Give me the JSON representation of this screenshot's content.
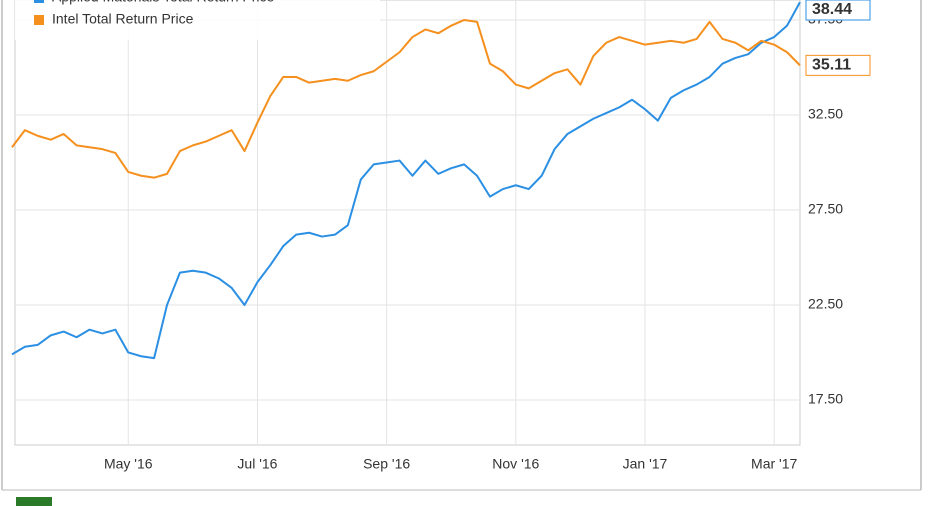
{
  "chart_data": {
    "type": "line",
    "categories": [
      null,
      null,
      null,
      null,
      null,
      null,
      null,
      null,
      null,
      "May '16",
      null,
      null,
      null,
      null,
      null,
      null,
      null,
      null,
      null,
      "Jul '16",
      null,
      null,
      null,
      null,
      null,
      null,
      null,
      null,
      null,
      "Sep '16",
      null,
      null,
      null,
      null,
      null,
      null,
      null,
      null,
      null,
      "Nov '16",
      null,
      null,
      null,
      null,
      null,
      null,
      null,
      null,
      null,
      "Jan '17",
      null,
      null,
      null,
      null,
      null,
      null,
      null,
      null,
      null,
      "Mar '17",
      null,
      null
    ],
    "series": [
      {
        "name": "Applied Materials Total Return Price",
        "color": "#2b8fe3",
        "values": [
          19.9,
          20.3,
          20.4,
          20.9,
          21.1,
          20.8,
          21.2,
          21.0,
          21.2,
          20.0,
          19.8,
          19.7,
          22.5,
          24.2,
          24.3,
          24.2,
          23.9,
          23.4,
          22.5,
          23.7,
          24.6,
          25.6,
          26.2,
          26.3,
          26.1,
          26.2,
          26.7,
          29.1,
          29.9,
          30.0,
          30.1,
          29.3,
          30.1,
          29.4,
          29.7,
          29.9,
          29.3,
          28.2,
          28.6,
          28.8,
          28.6,
          29.3,
          30.7,
          31.5,
          31.9,
          32.3,
          32.6,
          32.9,
          33.3,
          32.8,
          32.2,
          33.4,
          33.8,
          34.1,
          34.5,
          35.2,
          35.5,
          35.7,
          36.3,
          36.6,
          37.2,
          38.44
        ]
      },
      {
        "name": "Intel Total Return Price",
        "color": "#f5901e",
        "values": [
          30.8,
          31.7,
          31.4,
          31.2,
          31.5,
          30.9,
          30.8,
          30.7,
          30.5,
          29.5,
          29.3,
          29.2,
          29.4,
          30.6,
          30.9,
          31.1,
          31.4,
          31.7,
          30.6,
          32.1,
          33.5,
          34.5,
          34.5,
          34.2,
          34.3,
          34.4,
          34.3,
          34.6,
          34.8,
          35.3,
          35.8,
          36.6,
          37.0,
          36.8,
          37.2,
          37.5,
          37.4,
          35.2,
          34.8,
          34.1,
          33.9,
          34.3,
          34.7,
          34.9,
          34.1,
          35.6,
          36.3,
          36.6,
          36.4,
          36.2,
          36.3,
          36.4,
          36.3,
          36.5,
          37.4,
          36.5,
          36.3,
          35.9,
          36.4,
          36.2,
          35.8,
          35.11
        ]
      }
    ],
    "ylim": [
      15.13,
      38.55
    ],
    "yticks": [
      {
        "value": 17.5,
        "label": "17.50"
      },
      {
        "value": 22.5,
        "label": "22.50"
      },
      {
        "value": 27.5,
        "label": "27.50"
      },
      {
        "value": 32.5,
        "label": "32.50"
      },
      {
        "value": 37.5,
        "label": "37.50"
      }
    ],
    "grid": true
  }
}
